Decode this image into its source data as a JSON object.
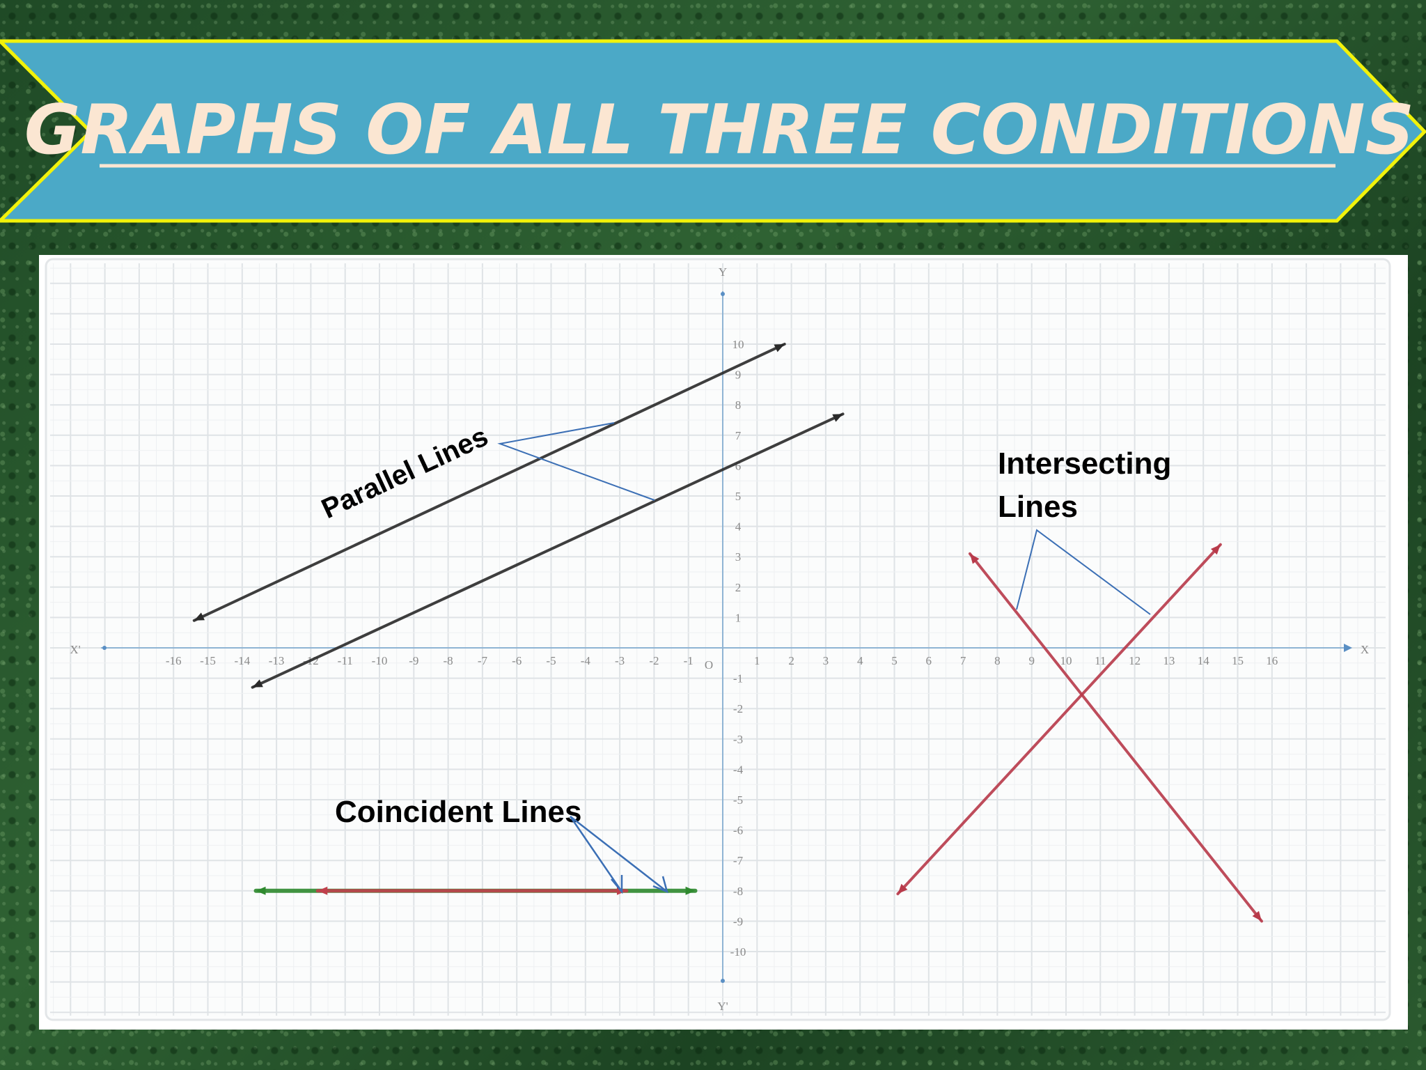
{
  "slide": {
    "title": "GRAPHS OF ALL THREE CONDITIONS",
    "colors": {
      "banner": "#4ba9c7",
      "banner_border": "#f2f20a",
      "title": "#fbe6d2",
      "background": "#2a5a2e"
    }
  },
  "chart_data": {
    "type": "line",
    "xlim": [
      -16,
      16
    ],
    "ylim": [
      -10,
      10
    ],
    "grid": true,
    "axis_labels": {
      "x_pos": "X",
      "x_neg": "X'",
      "y_pos": "Y",
      "y_neg": "Y'",
      "origin": "O"
    },
    "x_ticks": [
      -16,
      -15,
      -14,
      -13,
      -12,
      -11,
      -10,
      -9,
      -8,
      -7,
      -6,
      -5,
      -4,
      -3,
      -2,
      -1,
      1,
      2,
      3,
      4,
      5,
      6,
      7,
      8,
      9,
      10,
      11,
      12,
      13,
      14,
      15,
      16
    ],
    "y_ticks": [
      -10,
      -9,
      -8,
      -7,
      -6,
      -5,
      -4,
      -3,
      -2,
      -1,
      1,
      2,
      3,
      4,
      5,
      6,
      7,
      8,
      9,
      10
    ],
    "series": [
      {
        "group": "parallel",
        "color": "#2a2a2a",
        "points": [
          [
            -15.4,
            0.9
          ],
          [
            1.8,
            10.0
          ]
        ]
      },
      {
        "group": "parallel",
        "color": "#2a2a2a",
        "points": [
          [
            -13.7,
            -1.3
          ],
          [
            3.5,
            7.7
          ]
        ]
      },
      {
        "group": "intersecting",
        "color": "#b83a4a",
        "points": [
          [
            7.2,
            3.1
          ],
          [
            15.7,
            -9.0
          ]
        ]
      },
      {
        "group": "intersecting",
        "color": "#b83a4a",
        "points": [
          [
            5.1,
            -8.1
          ],
          [
            14.5,
            3.4
          ]
        ]
      },
      {
        "group": "coincident",
        "color": "#2f8a2f",
        "points": [
          [
            -13.6,
            -8.0
          ],
          [
            -0.8,
            -8.0
          ]
        ]
      },
      {
        "group": "coincident",
        "color": "#c0404c",
        "points": [
          [
            -11.8,
            -8.0
          ],
          [
            -2.8,
            -8.0
          ]
        ]
      }
    ],
    "annotations": [
      {
        "id": "parallel",
        "text": "Parallel Lines"
      },
      {
        "id": "intersecting",
        "lines": [
          "Intersecting",
          "Lines"
        ]
      },
      {
        "id": "coincident",
        "text": "Coincident Lines"
      }
    ]
  }
}
